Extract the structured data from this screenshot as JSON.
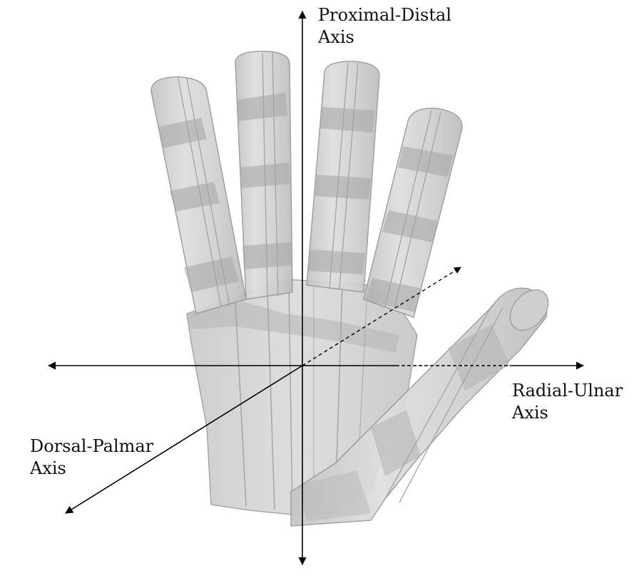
{
  "figure": {
    "labels": {
      "proximal_distal": {
        "line1": "Proximal-Distal",
        "line2": "Axis"
      },
      "radial_ulnar": {
        "line1": "Radial-Ulnar",
        "line2": "Axis"
      },
      "dorsal_palmar": {
        "line1": "Dorsal-Palmar",
        "line2": "Axis"
      }
    },
    "colors": {
      "hand_fill": "#d3d3d3",
      "hand_edge": "#9a9a9a",
      "joint_shade": "#a9a9a9",
      "axis": "#000000",
      "background": "#ffffff"
    }
  }
}
